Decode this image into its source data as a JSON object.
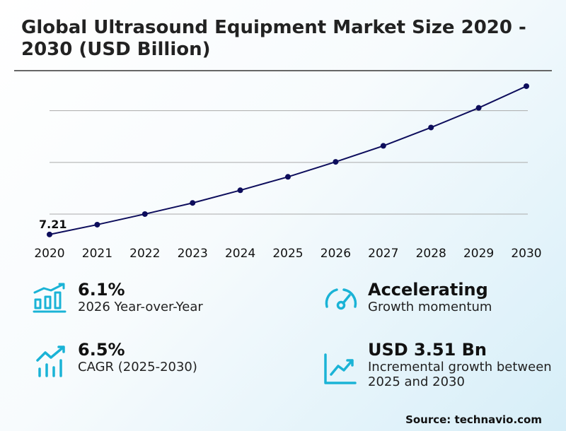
{
  "title": "Global Ultrasound Equipment Market Size 2020 - 2030 (USD Billion)",
  "chart_data": {
    "type": "line",
    "title": "Global Ultrasound Equipment Market Size 2020 - 2030 (USD Billion)",
    "x": [
      "2020",
      "2021",
      "2022",
      "2023",
      "2024",
      "2025",
      "2026",
      "2027",
      "2028",
      "2029",
      "2030"
    ],
    "series": [
      {
        "values": [
          7.21,
          7.59,
          8.0,
          8.43,
          8.92,
          9.44,
          10.02,
          10.64,
          11.35,
          12.11,
          12.95
        ]
      }
    ],
    "data_labels": [
      {
        "index": 0,
        "text": "7.21"
      }
    ],
    "ylim": [
      6.85,
      13.55
    ],
    "gridlines_y": [
      8,
      10,
      12
    ],
    "grid": true,
    "line_color": "#0d0d5c"
  },
  "stats": [
    {
      "value": "6.1%",
      "label": "2026 Year-over-Year",
      "icon": "bar-chart-growth-icon"
    },
    {
      "value": "Accelerating",
      "label": "Growth momentum",
      "icon": "speedometer-icon"
    },
    {
      "value": "6.5%",
      "label": "CAGR (2025-2030)",
      "icon": "trend-bars-icon"
    },
    {
      "value": "USD 3.51 Bn",
      "label": "Incremental growth between 2025 and 2030",
      "icon": "line-chart-up-icon"
    }
  ],
  "accent_color": "#1ab3d6",
  "source": "Source: technavio.com"
}
